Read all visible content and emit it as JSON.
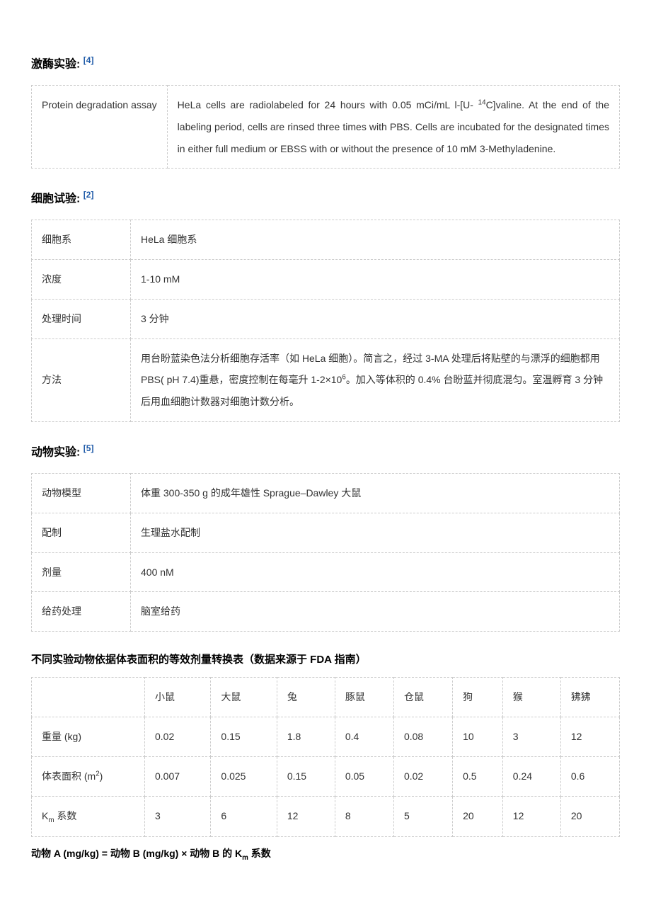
{
  "sections": {
    "kinase": {
      "title": "激酶实验:",
      "ref": "[4]",
      "rows": [
        {
          "label": "Protein degradation assay",
          "value": "HeLa cells are radiolabeled for 24 hours with 0.05 mCi/mL l-[U- 14C]valine. At the end of the labeling period, cells are rinsed three times with PBS. Cells are incubated for the designated times in either full medium or EBSS with or without the presence of 10 mM 3-Methyladenine."
        }
      ]
    },
    "cell": {
      "title": "细胞试验:",
      "ref": "[2]",
      "rows": [
        {
          "label": "细胞系",
          "value": "HeLa  细胞系"
        },
        {
          "label": "浓度",
          "value": "1-10 mM"
        },
        {
          "label": "处理时间",
          "value": "3  分钟"
        },
        {
          "label": "方法",
          "value": "用台盼蓝染色法分析细胞存活率（如 HeLa 细胞）。简言之，经过 3-MA 处理后将贴壁的与漂浮的细胞都用PBS( pH 7.4)重悬，密度控制在每毫升 1-2×106。加入等体积的 0.4%  台盼蓝并彻底混匀。室温孵育 3 分钟后用血细胞计数器对细胞计数分析。"
        }
      ]
    },
    "animal": {
      "title": "动物实验:",
      "ref": "[5]",
      "rows": [
        {
          "label": "动物模型",
          "value": "体重  300-350 g  的成年雄性 Sprague–Dawley  大鼠"
        },
        {
          "label": "配制",
          "value": "生理盐水配制"
        },
        {
          "label": "剂量",
          "value": "400 nM"
        },
        {
          "label": "给药处理",
          "value": "脑室给药"
        }
      ]
    }
  },
  "conversion": {
    "title": "不同实验动物依据体表面积的等效剂量转换表（数据来源于 FDA 指南）",
    "columns": [
      "",
      "小鼠",
      "大鼠",
      "兔",
      "豚鼠",
      "仓鼠",
      "狗",
      "猴",
      "狒狒"
    ],
    "rows": [
      {
        "label": "重量  (kg)",
        "values": [
          "0.02",
          "0.15",
          "1.8",
          "0.4",
          "0.08",
          "10",
          "3",
          "12"
        ]
      },
      {
        "label": "体表面积  (m2)",
        "values": [
          "0.007",
          "0.025",
          "0.15",
          "0.05",
          "0.02",
          "0.5",
          "0.24",
          "0.6"
        ]
      },
      {
        "label": "Km  系数",
        "values": [
          "3",
          "6",
          "12",
          "8",
          "5",
          "20",
          "12",
          "20"
        ]
      }
    ]
  },
  "formula": "动物 A (mg/kg)  =  动物 B (mg/kg)  ×  动物 B 的 Km 系数",
  "styling": {
    "background_color": "#ffffff",
    "text_color": "#333333",
    "heading_color": "#000000",
    "ref_color": "#1e5aa8",
    "border_color": "#cccccc",
    "border_style": "dashed",
    "font_family": "Microsoft YaHei",
    "base_font_size": 14,
    "heading_font_size": 16,
    "line_height": 2.2,
    "cell_padding": 12
  }
}
